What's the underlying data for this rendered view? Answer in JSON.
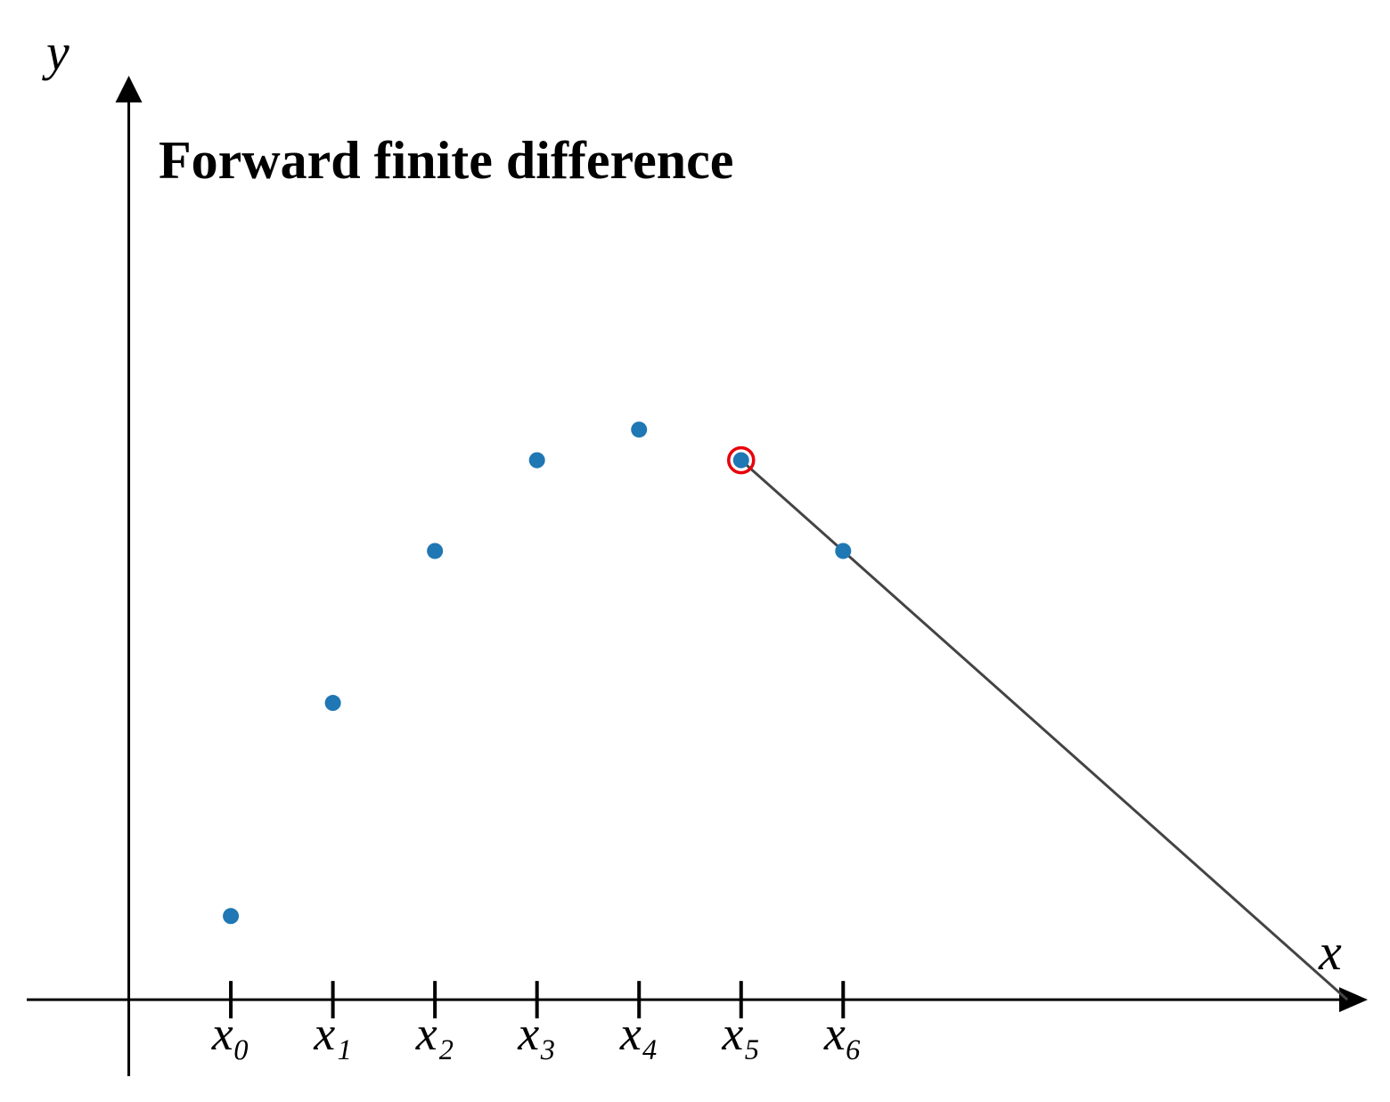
{
  "chart_data": {
    "type": "scatter",
    "title": "Forward finite difference",
    "x_label": "x",
    "y_label": "y",
    "x": [
      1,
      2,
      3,
      4,
      5,
      6,
      7
    ],
    "values": [
      0.82,
      2.91,
      4.4,
      5.29,
      5.59,
      5.29,
      4.4
    ],
    "color": "#1f77b4",
    "xlim": [
      -1,
      12.14
    ],
    "ylim": [
      -0.75,
      9.06
    ],
    "xticks": [
      {
        "value": 1,
        "label": "x₀"
      },
      {
        "value": 2,
        "label": "x₁"
      },
      {
        "value": 3,
        "label": "x₂"
      },
      {
        "value": 4,
        "label": "x₃"
      },
      {
        "value": 5,
        "label": "x₄"
      },
      {
        "value": 6,
        "label": "x₅"
      },
      {
        "value": 7,
        "label": "x₆"
      }
    ],
    "line": {
      "x": [
        6,
        11.94
      ],
      "values": [
        5.29,
        0
      ],
      "color": "#444444"
    },
    "highlight_index": 5,
    "highlight_color": "#e8000b"
  }
}
